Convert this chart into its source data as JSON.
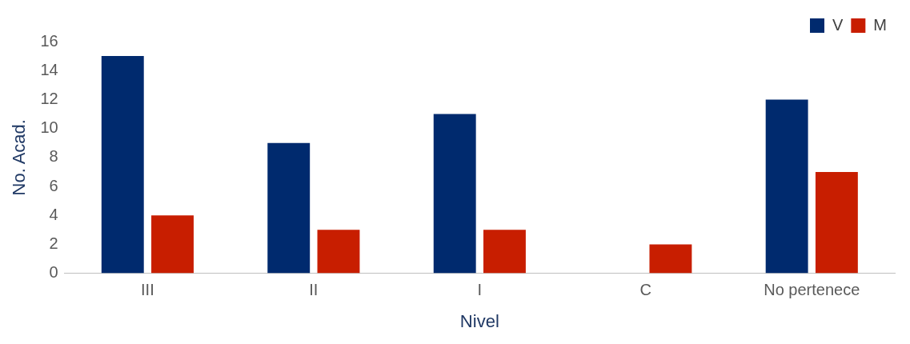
{
  "chart_data": {
    "type": "bar",
    "xlabel": "Nivel",
    "ylabel": "No. Acad.",
    "categories": [
      "III",
      "II",
      "I",
      "C",
      "No pertenece"
    ],
    "series": [
      {
        "name": "V",
        "color": "#002a6e",
        "values": [
          15,
          9,
          11,
          0,
          12
        ]
      },
      {
        "name": "M",
        "color": "#c81e00",
        "values": [
          4,
          3,
          3,
          2,
          7
        ]
      }
    ],
    "ylim": [
      0,
      16
    ],
    "yticks": [
      0,
      2,
      4,
      6,
      8,
      10,
      12,
      14,
      16
    ],
    "grid": false,
    "legend": "top right"
  }
}
